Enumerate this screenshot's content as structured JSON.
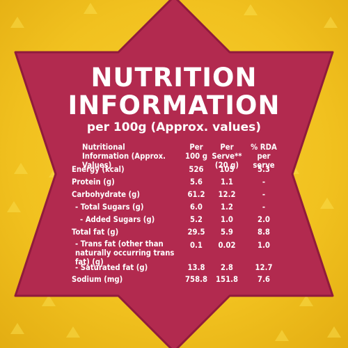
{
  "title_line1": "NUTRITION",
  "title_line2": "INFORMATION",
  "subtitle": "per 100g (Approx. values)",
  "colors": {
    "background": "#f1c11f",
    "star": "#b22a4f",
    "text": "#ffffff"
  },
  "table": {
    "headers": {
      "nutrient": "Nutritional Information (Approx. Values)",
      "per100": "Per 100 g",
      "perserve": "Per Serve** (20 g)",
      "rda": "% RDA per serve"
    },
    "rows": [
      {
        "name": "Energy (kcal)",
        "per100": "526",
        "perserve": "105",
        "rda": "5.3"
      },
      {
        "name": "Protein (g)",
        "per100": "5.6",
        "perserve": "1.1",
        "rda": "-"
      },
      {
        "name": "Carbohydrate (g)",
        "per100": "61.2",
        "perserve": "12.2",
        "rda": "-"
      },
      {
        "name": "- Total Sugars (g)",
        "per100": "6.0",
        "perserve": "1.2",
        "rda": "-"
      },
      {
        "name": "- Added Sugars (g)",
        "per100": "5.2",
        "perserve": "1.0",
        "rda": "2.0"
      },
      {
        "name": "Total fat (g)",
        "per100": "29.5",
        "perserve": "5.9",
        "rda": "8.8"
      },
      {
        "name": "- Trans fat (other than naturally occurring trans fat) (g)",
        "per100": "0.1",
        "perserve": "0.02",
        "rda": "1.0"
      },
      {
        "name": "- Saturated fat (g)",
        "per100": "13.8",
        "perserve": "2.8",
        "rda": "12.7"
      },
      {
        "name": "Sodium (mg)",
        "per100": "758.8",
        "perserve": "151.8",
        "rda": "7.6"
      }
    ]
  }
}
